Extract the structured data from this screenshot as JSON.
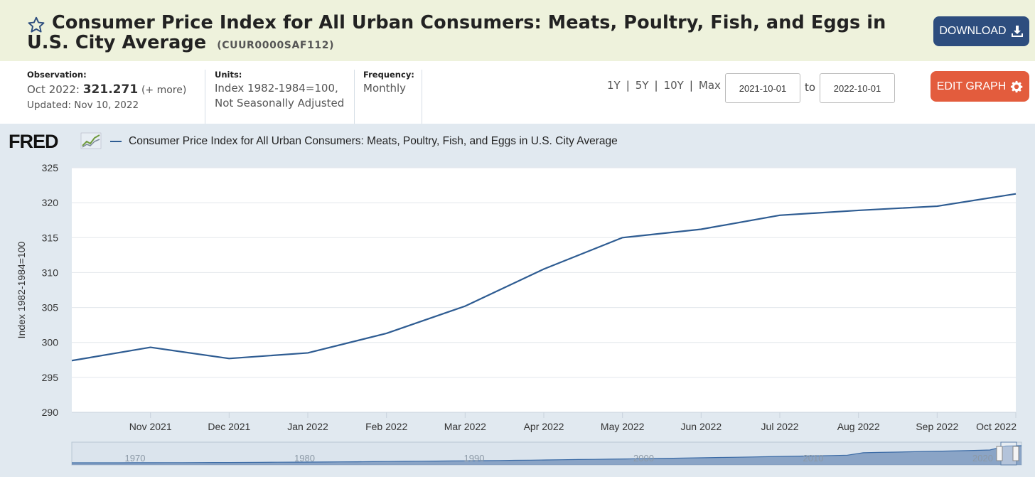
{
  "header": {
    "title": "Consumer Price Index for All Urban Consumers: Meats, Poultry, Fish, and Eggs in U.S. City Average",
    "series_id": "(CUUR0000SAF112)",
    "download_label": "DOWNLOAD"
  },
  "info": {
    "observation_label": "Observation:",
    "observation_date": "Oct 2022:",
    "observation_value": "321.271",
    "observation_more": "(+ more)",
    "updated": "Updated: Nov 10, 2022",
    "units_label": "Units:",
    "units_line1": "Index 1982-1984=100,",
    "units_line2": "Not Seasonally Adjusted",
    "frequency_label": "Frequency:",
    "frequency_value": "Monthly",
    "ranges": [
      "1Y",
      "5Y",
      "10Y",
      "Max"
    ],
    "date_from": "2021-10-01",
    "to_label": "to",
    "date_to": "2022-10-01",
    "edit_label": "EDIT GRAPH"
  },
  "graph": {
    "logo": "FRED",
    "legend": "Consumer Price Index for All Urban Consumers: Meats, Poultry, Fish, and Eggs in U.S. City Average"
  },
  "chart_data": {
    "type": "line",
    "ylabel": "Index 1982-1984=100",
    "ylim": [
      290,
      325
    ],
    "yticks": [
      290,
      295,
      300,
      305,
      310,
      315,
      320,
      325
    ],
    "categories": [
      "Oct 2021",
      "Nov 2021",
      "Dec 2021",
      "Jan 2022",
      "Feb 2022",
      "Mar 2022",
      "Apr 2022",
      "May 2022",
      "Jun 2022",
      "Jul 2022",
      "Aug 2022",
      "Sep 2022",
      "Oct 2022"
    ],
    "tick_labels": [
      "",
      "Nov 2021",
      "Dec 2021",
      "Jan 2022",
      "Feb 2022",
      "Mar 2022",
      "Apr 2022",
      "May 2022",
      "Jun 2022",
      "Jul 2022",
      "Aug 2022",
      "Sep 2022",
      "Oct 2022"
    ],
    "series": [
      {
        "values": [
          297.4,
          299.3,
          297.7,
          298.5,
          301.3,
          305.2,
          310.5,
          315.0,
          316.2,
          318.2,
          318.9,
          319.5,
          321.271
        ]
      }
    ],
    "grid": true,
    "color": "#2e5c92",
    "navigator": {
      "decade_labels": [
        "1970",
        "1980",
        "1990",
        "2000",
        "2010",
        "2020"
      ]
    }
  }
}
